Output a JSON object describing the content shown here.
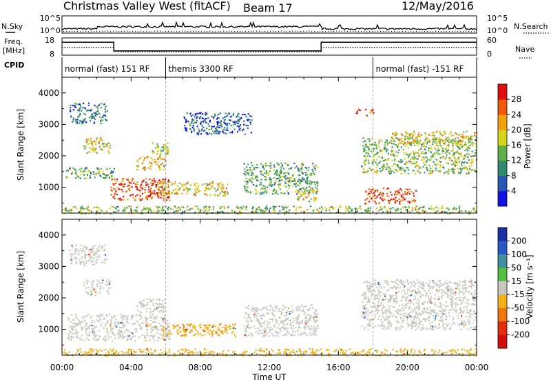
{
  "header": {
    "title": "Christmas Valley West (fitACF)",
    "beam": "Beam 17",
    "date": "12/May/2016"
  },
  "left_labels": {
    "nsky": "N.Sky",
    "freq_line1": "Freq.",
    "freq_line2": "[MHz]",
    "cpid": "CPID"
  },
  "right_labels": {
    "nsearch": "N.Search",
    "nave": "Nave"
  },
  "noise_panel": {
    "left_ticks": [
      "10^5",
      "10^0"
    ],
    "right_ticks": [
      "10^5",
      "10^0"
    ]
  },
  "freq_panel": {
    "left_ticks": [
      "18",
      "8"
    ],
    "right_ticks": [
      "60",
      "0"
    ],
    "freq_steps_mhz": [
      {
        "t0": 0,
        "t1": 3,
        "value": 15.5
      },
      {
        "t0": 3,
        "t1": 15,
        "value": 10.5
      },
      {
        "t0": 15,
        "t1": 24,
        "value": 15.5
      }
    ],
    "nave_steps": [
      {
        "t0": 0,
        "t1": 3,
        "value": 27
      },
      {
        "t0": 3,
        "t1": 15,
        "value": 12
      },
      {
        "t0": 15,
        "t1": 24,
        "value": 27
      }
    ]
  },
  "cpid_segments": [
    {
      "label": "normal (fast) 151 RF",
      "start_hour": 0
    },
    {
      "label": "themis 3300 RF",
      "start_hour": 6
    },
    {
      "label": "normal (fast) -151 RF",
      "start_hour": 18
    }
  ],
  "power_colorbar": {
    "label": "Power [dB]",
    "ticks": [
      "4",
      "8",
      "12",
      "16",
      "20",
      "24",
      "28"
    ],
    "colors": [
      "#1010e0",
      "#2a56b8",
      "#2f8a6e",
      "#5fb04a",
      "#d6d61a",
      "#f2a10e",
      "#f05a0a",
      "#e01010"
    ]
  },
  "velocity_colorbar": {
    "label": "Velocity [m s⁻¹]",
    "ticks": [
      "200",
      "100",
      "50",
      "15",
      "-15",
      "-50",
      "-100",
      "-200"
    ],
    "colors": [
      "#1a2fa0",
      "#2a58c8",
      "#3f8fa0",
      "#55c040",
      "#c8c8c0",
      "#f2b21a",
      "#f07810",
      "#e03010",
      "#d01010"
    ]
  },
  "x_ticks": [
    "00:00",
    "04:00",
    "08:00",
    "12:00",
    "16:00",
    "20:00",
    "00:00"
  ],
  "x_label": "Time UT",
  "y_label": "Slant Range [km]",
  "chart_data": {
    "type": "heatmap",
    "xlim_hours": [
      0,
      24
    ],
    "ylim_km": [
      180,
      4500
    ],
    "y_ticks": [
      1000,
      2000,
      3000,
      4000
    ],
    "panels": [
      {
        "quantity": "power",
        "units": "dB",
        "clim": [
          0,
          30
        ],
        "echo_regions": [
          {
            "t0": 2.8,
            "t1": 6.2,
            "r0": 600,
            "r1": 1300,
            "value": 26
          },
          {
            "t0": 5.5,
            "t1": 9.6,
            "r0": 750,
            "r1": 1200,
            "value": 18
          },
          {
            "t0": 0.2,
            "t1": 3.0,
            "r0": 1300,
            "r1": 1650,
            "value": 12
          },
          {
            "t0": 1.2,
            "t1": 2.8,
            "r0": 2100,
            "r1": 2600,
            "value": 18
          },
          {
            "t0": 4.3,
            "t1": 6.0,
            "r0": 1550,
            "r1": 2000,
            "value": 20
          },
          {
            "t0": 5.2,
            "t1": 6.2,
            "r0": 2050,
            "r1": 2450,
            "value": 16
          },
          {
            "t0": 0.4,
            "t1": 2.6,
            "r0": 3050,
            "r1": 3700,
            "value": 8
          },
          {
            "t0": 10.5,
            "t1": 14.8,
            "r0": 800,
            "r1": 1800,
            "value": 12
          },
          {
            "t0": 13.5,
            "t1": 14.8,
            "r0": 550,
            "r1": 950,
            "value": 18
          },
          {
            "t0": 17.5,
            "t1": 20.5,
            "r0": 500,
            "r1": 1000,
            "value": 26
          },
          {
            "t0": 17.3,
            "t1": 24.0,
            "r0": 1450,
            "r1": 2600,
            "value": 14
          },
          {
            "t0": 19.0,
            "t1": 24.0,
            "r0": 2400,
            "r1": 2800,
            "value": 18
          },
          {
            "t0": 7.0,
            "t1": 11.0,
            "r0": 2700,
            "r1": 3400,
            "value": 6
          },
          {
            "t0": 17.0,
            "t1": 18.0,
            "r0": 3300,
            "r1": 3500,
            "value": 26
          },
          {
            "t0": 0.0,
            "t1": 24.0,
            "r0": 180,
            "r1": 420,
            "value": 14
          }
        ]
      },
      {
        "quantity": "velocity",
        "units": "m s^-1",
        "clim": [
          -200,
          200
        ],
        "echo_regions": [
          {
            "t0": 0.3,
            "t1": 6.2,
            "r0": 650,
            "r1": 1500,
            "value": 0
          },
          {
            "t0": 5.8,
            "t1": 10.0,
            "r0": 800,
            "r1": 1200,
            "value": -45
          },
          {
            "t0": 1.2,
            "t1": 2.8,
            "r0": 2100,
            "r1": 2600,
            "value": 0
          },
          {
            "t0": 4.3,
            "t1": 6.0,
            "r0": 1550,
            "r1": 2000,
            "value": 0
          },
          {
            "t0": 0.4,
            "t1": 2.6,
            "r0": 3050,
            "r1": 3700,
            "value": 0
          },
          {
            "t0": 10.5,
            "t1": 14.8,
            "r0": 800,
            "r1": 1800,
            "value": 0
          },
          {
            "t0": 17.3,
            "t1": 24.0,
            "r0": 1000,
            "r1": 2600,
            "value": 0
          },
          {
            "t0": 0.0,
            "t1": 24.0,
            "r0": 180,
            "r1": 400,
            "value": -30
          }
        ]
      }
    ]
  }
}
